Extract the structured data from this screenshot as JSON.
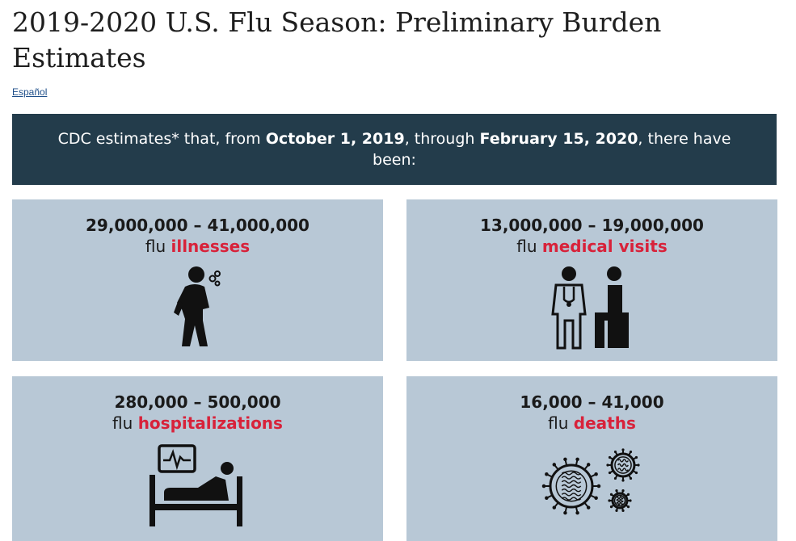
{
  "page": {
    "title": "2019-2020 U.S. Flu Season: Preliminary Burden Estimates",
    "language_link": "Español"
  },
  "banner": {
    "text_1": "CDC estimates* that, from ",
    "start_date": "October 1, 2019",
    "text_2": ", through ",
    "end_date": "February 15, 2020",
    "text_3": ", there have been:"
  },
  "cards": [
    {
      "range": "29,000,000 – 41,000,000",
      "prefix": "flu ",
      "highlight": "illnesses",
      "icon": "sick-person-icon"
    },
    {
      "range": "13,000,000 – 19,000,000",
      "prefix": "flu ",
      "highlight": "medical visits",
      "icon": "doctor-patient-icon"
    },
    {
      "range": "280,000 – 500,000",
      "prefix": "flu ",
      "highlight": "hospitalizations",
      "icon": "hospital-bed-icon"
    },
    {
      "range": "16,000 – 41,000",
      "prefix": "flu ",
      "highlight": "deaths",
      "icon": "virus-icon"
    }
  ],
  "colors": {
    "banner_bg": "#233c4b",
    "card_bg": "#b8c8d6",
    "highlight": "#d8223a"
  }
}
